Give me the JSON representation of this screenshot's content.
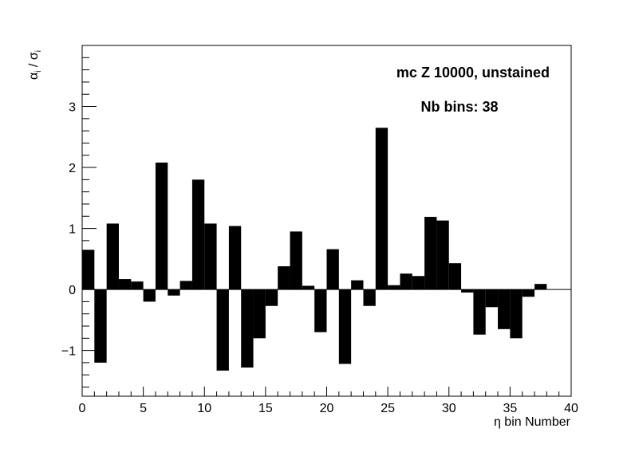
{
  "chart_data": {
    "type": "bar",
    "xlabel": "η bin Number",
    "ylabel_main": "α",
    "ylabel_main_sub": "i",
    "ylabel_sep": " / ",
    "ylabel_den": "σ",
    "ylabel_den_sub": "i",
    "xlim": [
      0,
      40
    ],
    "ylim": [
      -1.75,
      4.0
    ],
    "x_major_ticks": [
      0,
      5,
      10,
      15,
      20,
      25,
      30,
      35,
      40
    ],
    "y_major_ticks": [
      -1,
      0,
      1,
      2,
      3
    ],
    "x_tick_labels": [
      "0",
      "5",
      "10",
      "15",
      "20",
      "25",
      "30",
      "35",
      "40"
    ],
    "y_tick_labels": [
      "−1",
      "0",
      "1",
      "2",
      "3"
    ],
    "bin_width": 1,
    "bins": [
      0,
      1,
      2,
      3,
      4,
      5,
      6,
      7,
      8,
      9,
      10,
      11,
      12,
      13,
      14,
      15,
      16,
      17,
      18,
      19,
      20,
      21,
      22,
      23,
      24,
      25,
      26,
      27,
      28,
      29,
      30,
      31,
      32,
      33,
      34,
      35,
      36,
      37
    ],
    "values": [
      0.65,
      -1.2,
      1.08,
      0.17,
      0.13,
      -0.2,
      2.08,
      -0.1,
      0.14,
      1.8,
      1.08,
      -1.33,
      1.04,
      -1.28,
      -0.8,
      -0.27,
      0.38,
      0.95,
      0.06,
      -0.7,
      0.66,
      -1.22,
      0.15,
      -0.27,
      2.65,
      0.07,
      0.26,
      0.22,
      1.19,
      1.13,
      0.43,
      -0.05,
      -0.74,
      -0.29,
      -0.65,
      -0.8,
      -0.12,
      0.09
    ],
    "bar_color": "#000000",
    "grid": false,
    "annotations": [
      "mc Z 10000, unstained",
      "Nb bins: 38"
    ]
  }
}
